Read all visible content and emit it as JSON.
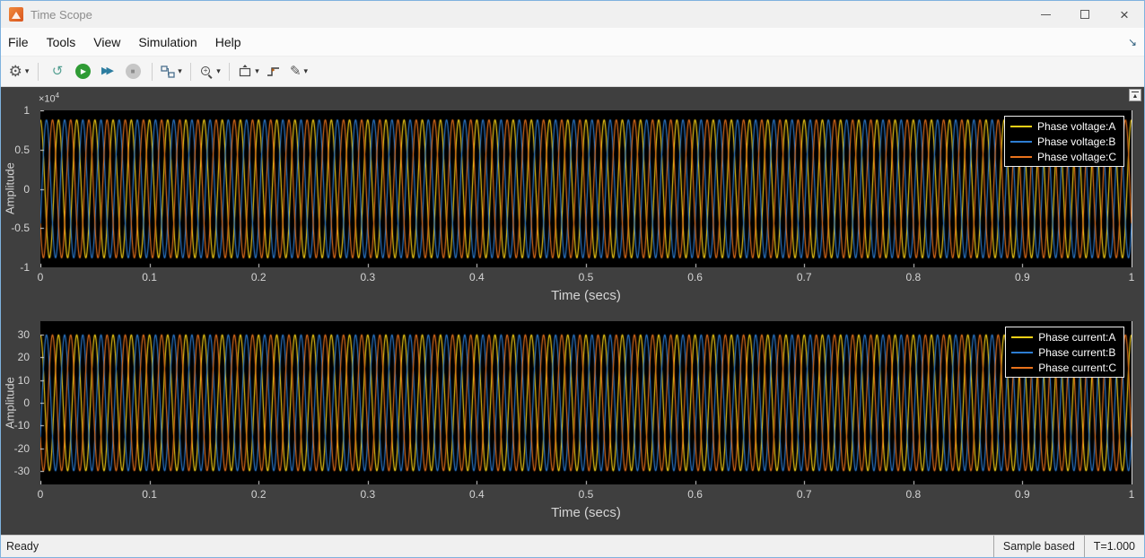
{
  "window": {
    "title": "Time Scope"
  },
  "menu": {
    "items": [
      "File",
      "Tools",
      "View",
      "Simulation",
      "Help"
    ]
  },
  "icons": {
    "gear": "⚙",
    "caret": "▾",
    "step_back": "↺",
    "play": "▶",
    "step_forward": "▶▶",
    "stop": "■",
    "zoom_plus": "+",
    "pencil": "✎",
    "dock": "↘",
    "expand": "▲",
    "close": "×"
  },
  "status": {
    "ready": "Ready",
    "sample_mode": "Sample based",
    "time": "T=1.000"
  },
  "chart_data": [
    {
      "type": "line",
      "title": "",
      "xlabel": "Time (secs)",
      "ylabel": "Amplitude",
      "y_exponent": {
        "base": "×10",
        "power": "4"
      },
      "xlim": [
        0,
        1
      ],
      "ylim": [
        -10000,
        10000
      ],
      "grid": false,
      "bg": "#000000",
      "legend_position": "top-right",
      "x_ticks": {
        "values": [
          0,
          0.1,
          0.2,
          0.3,
          0.4,
          0.5,
          0.6,
          0.7,
          0.8,
          0.9,
          1
        ],
        "labels": [
          "0",
          "0.1",
          "0.2",
          "0.3",
          "0.4",
          "0.5",
          "0.6",
          "0.7",
          "0.8",
          "0.9",
          "1"
        ]
      },
      "y_ticks": {
        "values": [
          10000,
          5000,
          0,
          -5000,
          -10000
        ],
        "labels": [
          "1",
          "0.5",
          "0",
          "-0.5",
          "-1"
        ]
      },
      "waveform": "sine",
      "series": [
        {
          "name": "Phase voltage:A",
          "color": "#f8d117",
          "amplitude": 8800,
          "frequency_hz": 60,
          "phase_deg": 90
        },
        {
          "name": "Phase voltage:B",
          "color": "#2d7dd2",
          "amplitude": 8800,
          "frequency_hz": 60,
          "phase_deg": -30
        },
        {
          "name": "Phase voltage:C",
          "color": "#e8721c",
          "amplitude": 8800,
          "frequency_hz": 60,
          "phase_deg": -150
        }
      ]
    },
    {
      "type": "line",
      "title": "",
      "xlabel": "Time (secs)",
      "ylabel": "Amplitude",
      "xlim": [
        0,
        1
      ],
      "ylim": [
        -36,
        36
      ],
      "grid": false,
      "bg": "#000000",
      "legend_position": "top-right",
      "x_ticks": {
        "values": [
          0,
          0.1,
          0.2,
          0.3,
          0.4,
          0.5,
          0.6,
          0.7,
          0.8,
          0.9,
          1
        ],
        "labels": [
          "0",
          "0.1",
          "0.2",
          "0.3",
          "0.4",
          "0.5",
          "0.6",
          "0.7",
          "0.8",
          "0.9",
          "1"
        ]
      },
      "y_ticks": {
        "values": [
          30,
          20,
          10,
          0,
          -10,
          -20,
          -30
        ],
        "labels": [
          "30",
          "20",
          "10",
          "0",
          "-10",
          "-20",
          "-30"
        ]
      },
      "waveform": "sine",
      "series": [
        {
          "name": "Phase current:A",
          "color": "#f8d117",
          "amplitude": 30,
          "frequency_hz": 60,
          "phase_deg": 90
        },
        {
          "name": "Phase current:B",
          "color": "#2d7dd2",
          "amplitude": 30,
          "frequency_hz": 60,
          "phase_deg": -30
        },
        {
          "name": "Phase current:C",
          "color": "#e8721c",
          "amplitude": 30,
          "frequency_hz": 60,
          "phase_deg": -150
        }
      ]
    }
  ]
}
